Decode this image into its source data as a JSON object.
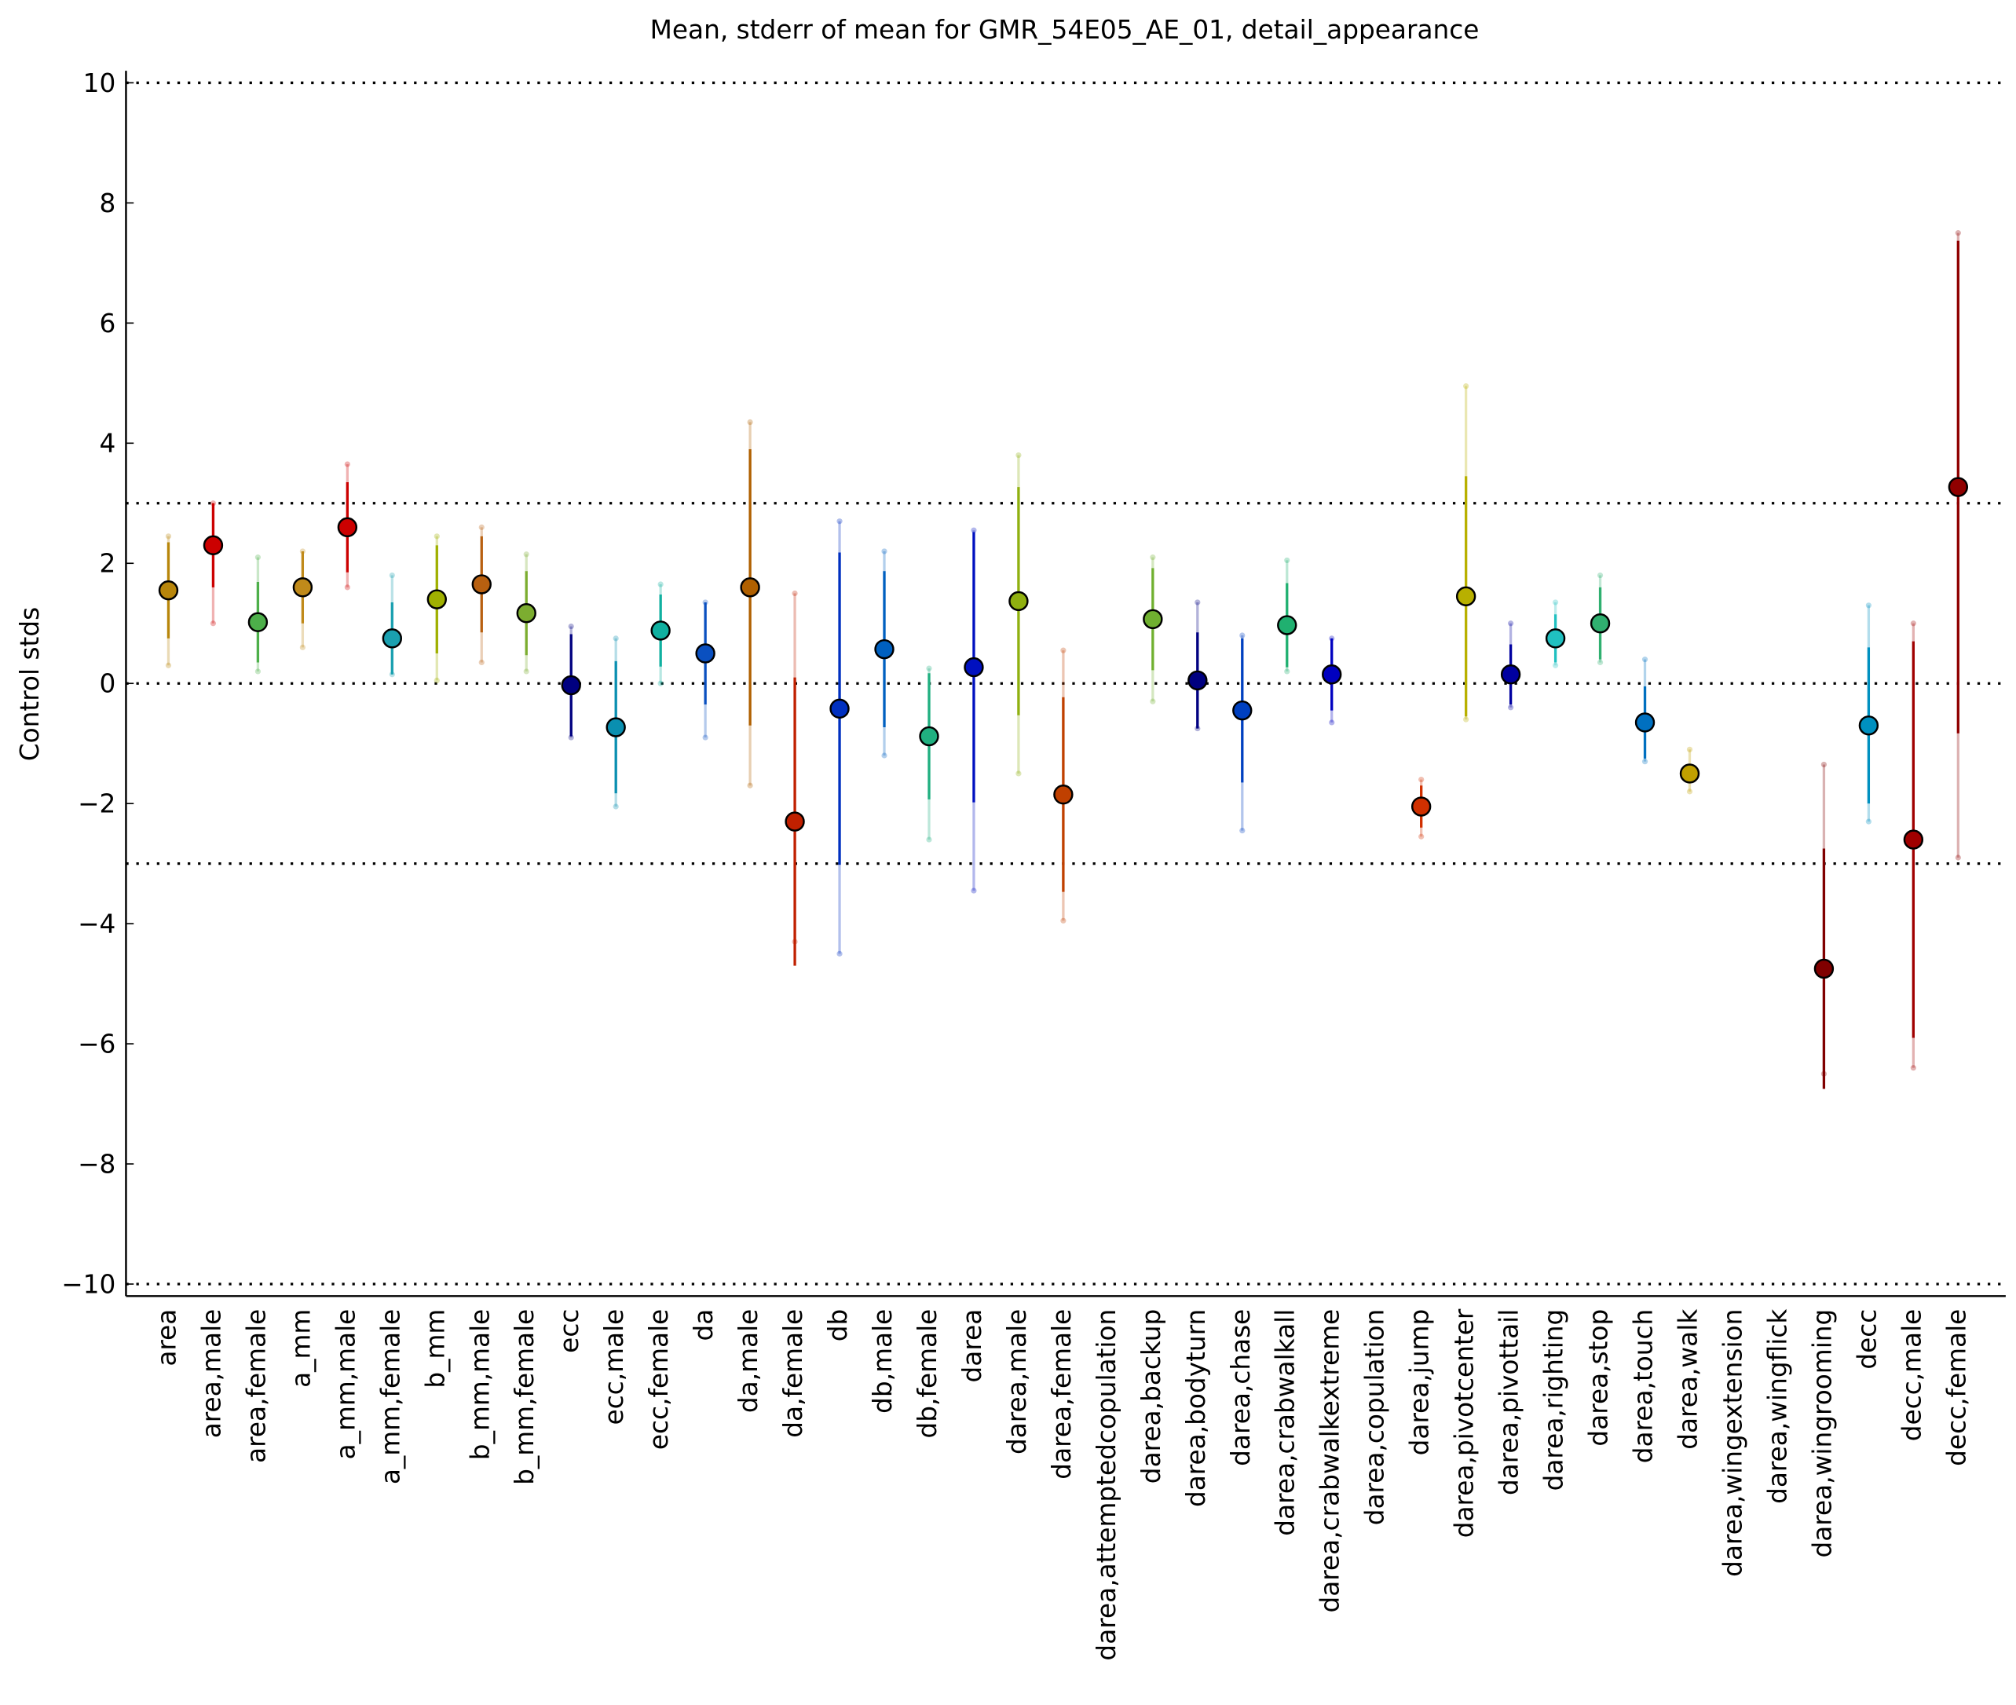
{
  "chart_data": {
    "type": "errorbar",
    "title": "Mean, stderr of mean for GMR_54E05_AE_01, detail_appearance",
    "y_label": "Control stds",
    "categories": [
      "area",
      "area,male",
      "area,female",
      "a_mm",
      "a_mm,male",
      "a_mm,female",
      "b_mm",
      "b_mm,male",
      "b_mm,female",
      "ecc",
      "ecc,male",
      "ecc,female",
      "da",
      "da,male",
      "da,female",
      "db",
      "db,male",
      "db,female",
      "darea",
      "darea,male",
      "darea,female",
      "darea,attemptedcopulation",
      "darea,backup",
      "darea,bodyturn",
      "darea,chase",
      "darea,crabwalkall",
      "darea,crabwalkextreme",
      "darea,copulation",
      "darea,jump",
      "darea,pivotcenter",
      "darea,pivottail",
      "darea,righting",
      "darea,stop",
      "darea,touch",
      "darea,walk",
      "darea,wingextension",
      "darea,wingflick",
      "darea,wingrooming",
      "decc",
      "decc,male",
      "decc,female"
    ],
    "values": [
      1.55,
      2.3,
      1.02,
      1.6,
      2.6,
      0.75,
      1.4,
      1.65,
      1.17,
      -0.03,
      -0.73,
      0.88,
      0.5,
      1.6,
      -2.3,
      -0.42,
      0.57,
      -0.88,
      0.27,
      1.37,
      -1.85,
      null,
      1.07,
      0.05,
      -0.45,
      0.97,
      0.15,
      null,
      -2.05,
      1.45,
      0.15,
      0.75,
      1.0,
      -0.65,
      -1.5,
      null,
      null,
      -4.75,
      -0.7,
      -2.6,
      3.27
    ],
    "errors": [
      0.8,
      0.7,
      0.67,
      0.6,
      0.75,
      0.6,
      0.9,
      0.8,
      0.7,
      0.85,
      1.1,
      0.6,
      0.85,
      2.3,
      2.4,
      2.6,
      1.3,
      1.05,
      2.25,
      1.9,
      1.62,
      null,
      0.85,
      0.8,
      1.2,
      0.7,
      0.6,
      null,
      0.35,
      2.0,
      0.5,
      0.4,
      0.6,
      0.6,
      0.15,
      null,
      null,
      2.0,
      1.3,
      3.3,
      4.1
    ],
    "ranges": [
      [
        0.3,
        2.45
      ],
      [
        1.0,
        3.0
      ],
      [
        0.2,
        2.1
      ],
      [
        0.6,
        2.2
      ],
      [
        1.6,
        3.65
      ],
      [
        0.15,
        1.8
      ],
      [
        0.05,
        2.45
      ],
      [
        0.35,
        2.6
      ],
      [
        0.2,
        2.15
      ],
      [
        -0.9,
        0.95
      ],
      [
        -2.05,
        0.75
      ],
      [
        0,
        1.65
      ],
      [
        -0.9,
        1.35
      ],
      [
        -1.7,
        4.35
      ],
      [
        -4.3,
        1.5
      ],
      [
        -4.5,
        2.7
      ],
      [
        -1.2,
        2.2
      ],
      [
        -2.6,
        0.25
      ],
      [
        -3.45,
        2.55
      ],
      [
        -1.5,
        3.8
      ],
      [
        -3.95,
        0.55
      ],
      null,
      [
        -0.3,
        2.1
      ],
      [
        -0.75,
        1.35
      ],
      [
        -2.45,
        0.8
      ],
      [
        0.2,
        2.05
      ],
      [
        -0.65,
        0.75
      ],
      null,
      [
        -2.55,
        -1.6
      ],
      [
        -0.6,
        4.95
      ],
      [
        -0.4,
        1.0
      ],
      [
        0.3,
        1.35
      ],
      [
        0.35,
        1.8
      ],
      [
        -1.3,
        0.4
      ],
      [
        -1.8,
        -1.1
      ],
      null,
      null,
      [
        -6.5,
        -1.35
      ],
      [
        -2.3,
        1.3
      ],
      [
        -6.4,
        1.0
      ],
      [
        -2.9,
        7.5
      ]
    ],
    "colors": [
      "#b8860b",
      "#cc0000",
      "#4daf4a",
      "#c08a1a",
      "#cc0000",
      "#1aa0b0",
      "#a0b000",
      "#b86010",
      "#7cad30",
      "#000080",
      "#0a8fb0",
      "#10b0a0",
      "#0a50c0",
      "#b06000",
      "#c02000",
      "#0030c0",
      "#0060c0",
      "#20b080",
      "#0010c0",
      "#90b010",
      "#c04000",
      "#909090",
      "#70b030",
      "#000080",
      "#0040c0",
      "#20b070",
      "#0000c0",
      "#909090",
      "#d03000",
      "#b8b000",
      "#0000a0",
      "#20c0c0",
      "#30b070",
      "#0070c0",
      "#c0a000",
      "#909090",
      "#909090",
      "#800000",
      "#0090c0",
      "#a00000",
      "#900000"
    ],
    "ylim": [
      -10.2,
      10.2
    ],
    "yticks": [
      {
        "value": -10,
        "label": "−10"
      },
      {
        "value": -8,
        "label": "−8"
      },
      {
        "value": -6,
        "label": "−6"
      },
      {
        "value": -4,
        "label": "−4"
      },
      {
        "value": -2,
        "label": "−2"
      },
      0,
      2,
      4,
      6,
      8,
      10
    ],
    "hlines": [
      10,
      3,
      0,
      -3,
      -10
    ]
  }
}
